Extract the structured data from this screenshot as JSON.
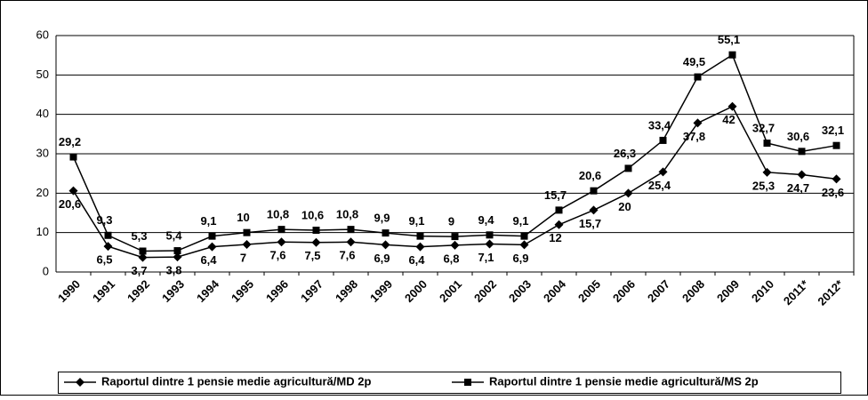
{
  "chart_data": {
    "type": "line",
    "categories": [
      "1990",
      "1991",
      "1992",
      "1993",
      "1994",
      "1995",
      "1996",
      "1997",
      "1998",
      "1999",
      "2000",
      "2001",
      "2002",
      "2003",
      "2004",
      "2005",
      "2006",
      "2007",
      "2008",
      "2009",
      "2010",
      "2011*",
      "2012*"
    ],
    "series": [
      {
        "name": "Raportul dintre 1 pensie medie agricultură/MD 2p",
        "color": "#000000",
        "marker": "diamond",
        "values": [
          20.6,
          6.5,
          3.7,
          3.8,
          6.4,
          7,
          7.6,
          7.5,
          7.6,
          6.9,
          6.4,
          6.8,
          7.1,
          6.9,
          12,
          15.7,
          20,
          25.4,
          37.8,
          42,
          25.3,
          24.7,
          23.6
        ],
        "value_labels": [
          "20,6",
          "6,5",
          "3,7",
          "3,8",
          "6,4",
          "7",
          "7,6",
          "7,5",
          "7,6",
          "6,9",
          "6,4",
          "6,8",
          "7,1",
          "6,9",
          "12",
          "15,7",
          "20",
          "25,4",
          "37,8",
          "42",
          "25,3",
          "24,7",
          "23,6"
        ]
      },
      {
        "name": "Raportul dintre 1 pensie medie agricultură/MS 2p",
        "color": "#000000",
        "marker": "square",
        "values": [
          29.2,
          9.3,
          5.3,
          5.4,
          9.1,
          10,
          10.8,
          10.6,
          10.8,
          9.9,
          9.1,
          9,
          9.4,
          9.1,
          15.7,
          20.6,
          26.3,
          33.4,
          49.5,
          55.1,
          32.7,
          30.6,
          32.1
        ],
        "value_labels": [
          "29,2",
          "9,3",
          "5,3",
          "5,4",
          "9,1",
          "10",
          "10,8",
          "10,6",
          "10,8",
          "9,9",
          "9,1",
          "9",
          "9,4",
          "9,1",
          "15,7",
          "20,6",
          "26,3",
          "33,4",
          "49,5",
          "55,1",
          "32,7",
          "30,6",
          "32,1"
        ]
      }
    ],
    "ylim": [
      0,
      60
    ],
    "yticks": [
      0,
      10,
      20,
      30,
      40,
      50,
      60
    ],
    "grid": true,
    "legend": "bottom"
  }
}
